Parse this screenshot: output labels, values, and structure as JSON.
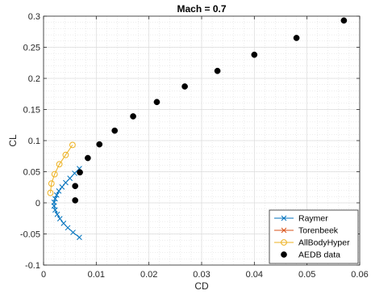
{
  "chart_data": {
    "type": "scatter",
    "title": "Mach = 0.7",
    "xlabel": "CD",
    "ylabel": "CL",
    "xlim": [
      0,
      0.06
    ],
    "ylim": [
      -0.1,
      0.3
    ],
    "x_ticks": [
      "0",
      "0.01",
      "0.02",
      "0.03",
      "0.04",
      "0.05",
      "0.06"
    ],
    "y_ticks": [
      "-0.1",
      "-0.05",
      "0",
      "0.05",
      "0.1",
      "0.15",
      "0.2",
      "0.25",
      "0.3"
    ],
    "grid": true,
    "minor_grid": true,
    "legend_position": "bottom-right",
    "series": [
      {
        "name": "Raymer",
        "marker": "x",
        "line": true,
        "color": "#0072BD",
        "points": [
          [
            0.0068,
            0.055
          ],
          [
            0.0059,
            0.0475
          ],
          [
            0.005,
            0.0395
          ],
          [
            0.0042,
            0.0325
          ],
          [
            0.0035,
            0.0255
          ],
          [
            0.0029,
            0.019
          ],
          [
            0.0025,
            0.0125
          ],
          [
            0.0022,
            0.0065
          ],
          [
            0.002,
            0.001
          ],
          [
            0.002,
            -0.005
          ],
          [
            0.0022,
            -0.0115
          ],
          [
            0.0026,
            -0.0185
          ],
          [
            0.0031,
            -0.0255
          ],
          [
            0.0038,
            -0.033
          ],
          [
            0.0046,
            -0.04
          ],
          [
            0.0056,
            -0.0475
          ],
          [
            0.0068,
            -0.0555
          ]
        ]
      },
      {
        "name": "Torenbeek",
        "marker": "x",
        "line": true,
        "color": "#D95319",
        "points": []
      },
      {
        "name": "AllBodyHyper",
        "marker": "o",
        "line": true,
        "color": "#EDB120",
        "points": [
          [
            0.0013,
            0.016
          ],
          [
            0.0015,
            0.031
          ],
          [
            0.0021,
            0.046
          ],
          [
            0.003,
            0.062
          ],
          [
            0.0042,
            0.077
          ],
          [
            0.0055,
            0.093
          ]
        ]
      },
      {
        "name": "AEDB data",
        "marker": "filled-circle",
        "line": false,
        "color": "#000000",
        "points": [
          [
            0.006,
            0.004
          ],
          [
            0.006,
            0.027
          ],
          [
            0.0069,
            0.049
          ],
          [
            0.0084,
            0.072
          ],
          [
            0.0106,
            0.094
          ],
          [
            0.0135,
            0.116
          ],
          [
            0.017,
            0.139
          ],
          [
            0.0215,
            0.162
          ],
          [
            0.0268,
            0.187
          ],
          [
            0.033,
            0.212
          ],
          [
            0.04,
            0.238
          ],
          [
            0.048,
            0.265
          ],
          [
            0.057,
            0.293
          ]
        ]
      }
    ]
  }
}
